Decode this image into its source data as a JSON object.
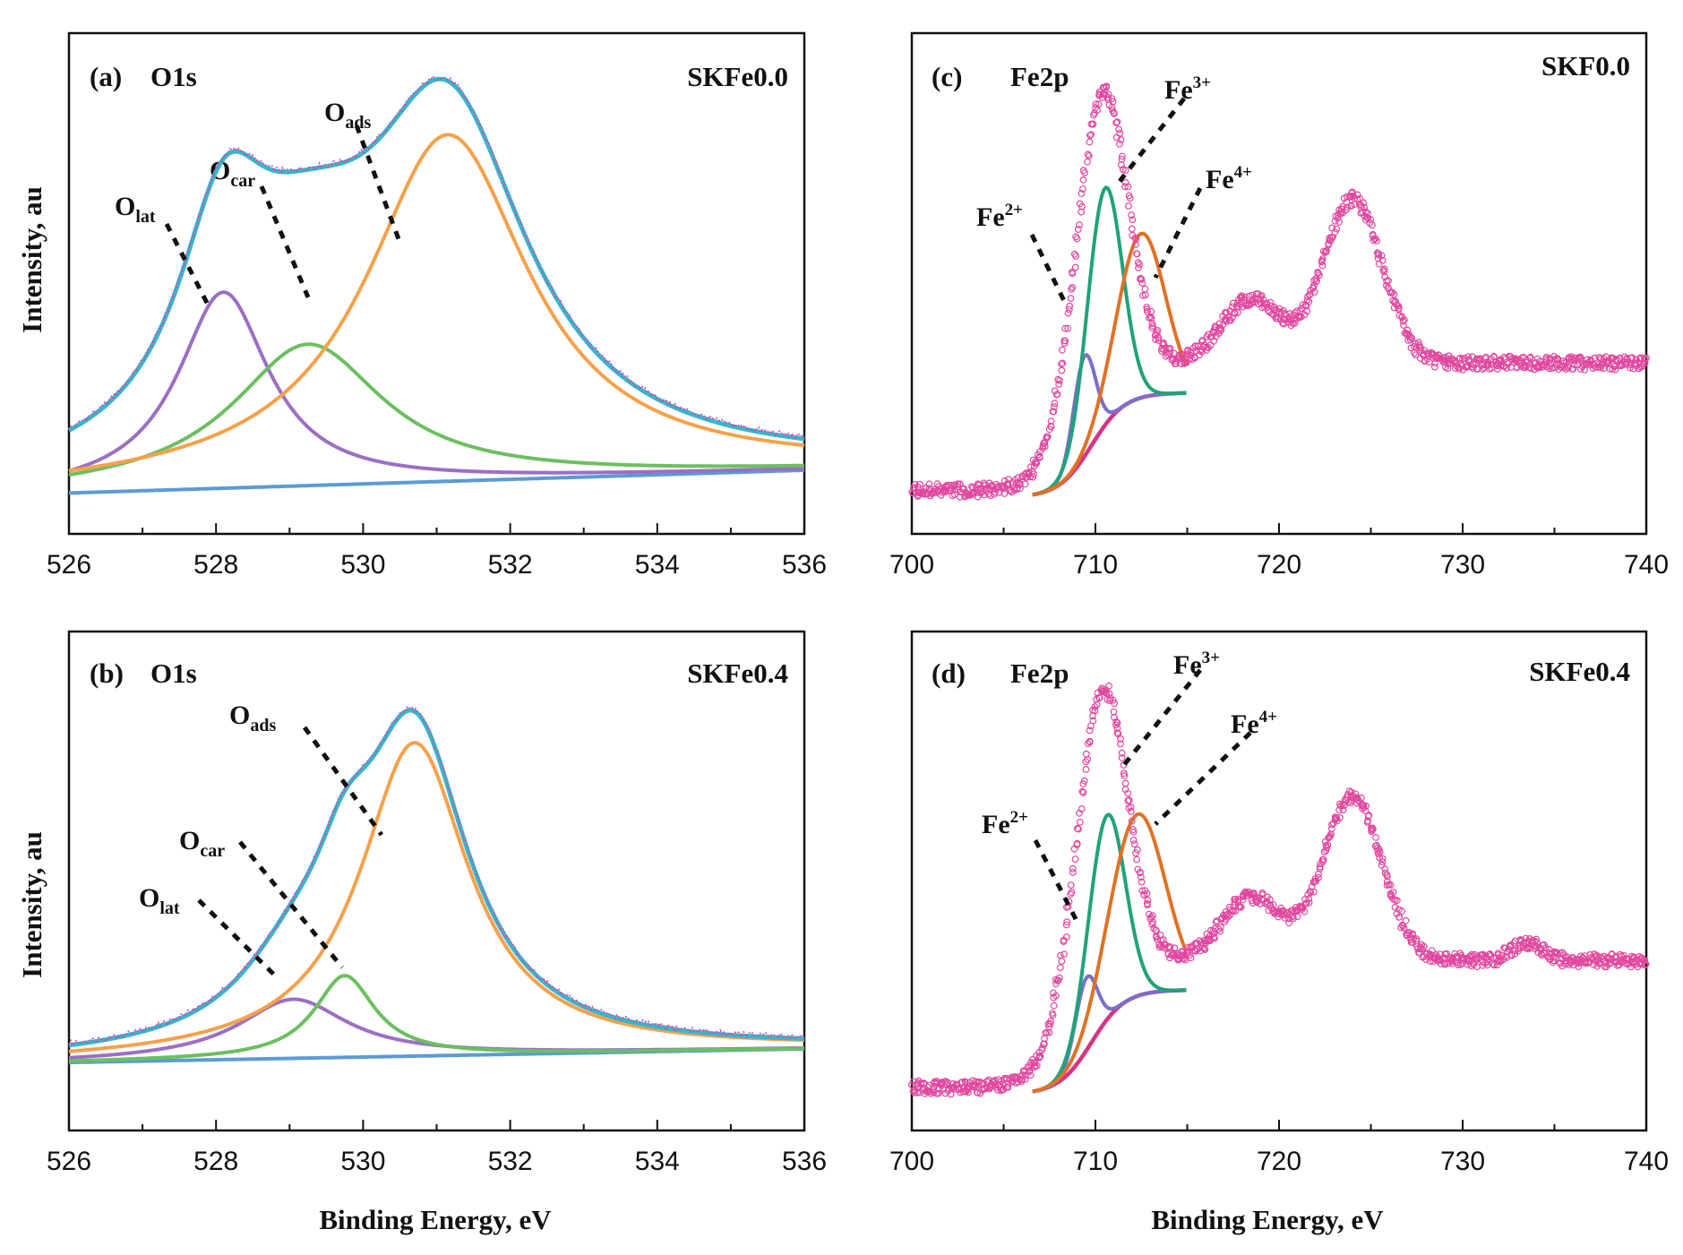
{
  "figure": {
    "ylabel": "Intensity, au",
    "xlabel": "Binding Energy, eV"
  },
  "chart_data": [
    {
      "id": "a",
      "type": "line",
      "panel_label": "(a)",
      "title": "O1s",
      "sample": "SKFe0.0",
      "xlabel": "",
      "ylabel": "Intensity, au",
      "xlim": [
        526,
        536
      ],
      "ylim": [
        0,
        1
      ],
      "xticks": [
        "526",
        "528",
        "530",
        "532",
        "534",
        "536"
      ],
      "background": {
        "x": [
          526,
          536
        ],
        "y": [
          0.07,
          0.12
        ],
        "color": "#5b9bd5"
      },
      "components": [
        {
          "name": "O_lat",
          "center": 528.1,
          "height": 0.43,
          "width": 0.75,
          "color": "#9b6fc4"
        },
        {
          "name": "O_car",
          "center": 529.25,
          "height": 0.31,
          "width": 1.25,
          "color": "#6cbf60"
        },
        {
          "name": "O_ads",
          "center": 531.15,
          "height": 0.76,
          "width": 1.35,
          "color": "#f5a14a"
        }
      ],
      "annotations": [
        {
          "base": "O",
          "sub": "lat"
        },
        {
          "base": "O",
          "sub": "car"
        },
        {
          "base": "O",
          "sub": "ads"
        }
      ],
      "envelope_color": "#36b6cf",
      "raw_color": "#e0479e"
    },
    {
      "id": "b",
      "type": "line",
      "panel_label": "(b)",
      "title": "O1s",
      "sample": "SKFe0.4",
      "xlabel": "Binding Energy, eV",
      "ylabel": "Intensity, au",
      "xlim": [
        526,
        536
      ],
      "ylim": [
        0,
        1
      ],
      "xticks": [
        "526",
        "528",
        "530",
        "532",
        "534",
        "536"
      ],
      "background": {
        "x": [
          526,
          536
        ],
        "y": [
          0.13,
          0.16
        ],
        "color": "#5b9bd5"
      },
      "components": [
        {
          "name": "O_lat",
          "center": 529.05,
          "height": 0.13,
          "width": 0.9,
          "color": "#9b6fc4"
        },
        {
          "name": "O_car",
          "center": 529.75,
          "height": 0.18,
          "width": 0.5,
          "color": "#6cbf60"
        },
        {
          "name": "O_ads",
          "center": 530.7,
          "height": 0.69,
          "width": 0.9,
          "color": "#f5a14a"
        }
      ],
      "annotations": [
        {
          "base": "O",
          "sub": "lat"
        },
        {
          "base": "O",
          "sub": "car"
        },
        {
          "base": "O",
          "sub": "ads"
        }
      ],
      "envelope_color": "#36b6cf",
      "raw_color": "#e0479e"
    },
    {
      "id": "c",
      "type": "line",
      "panel_label": "(c)",
      "title": "Fe2p",
      "sample": "SKF0.0",
      "xlabel": "",
      "ylabel": "",
      "xlim": [
        700,
        740
      ],
      "ylim": [
        0,
        1
      ],
      "xticks": [
        "700",
        "710",
        "720",
        "730",
        "740"
      ],
      "background_color": "#d63384",
      "components": [
        {
          "name": "Fe2+",
          "center": 709.4,
          "height": 0.22,
          "width": 0.6,
          "color": "#7b6fc9"
        },
        {
          "name": "Fe3+",
          "center": 710.5,
          "height": 0.52,
          "width": 0.95,
          "color": "#1fa37a"
        },
        {
          "name": "Fe4+",
          "center": 712.5,
          "height": 0.36,
          "width": 1.3,
          "color": "#e07224"
        }
      ],
      "annotations": [
        {
          "base": "Fe",
          "sup": "2+"
        },
        {
          "base": "Fe",
          "sup": "3+"
        },
        {
          "base": "Fe",
          "sup": "4+"
        }
      ],
      "raw_color": "#e0479e"
    },
    {
      "id": "d",
      "type": "line",
      "panel_label": "(d)",
      "title": "Fe2p",
      "sample": "SKFe0.4",
      "xlabel": "Binding Energy, eV",
      "ylabel": "",
      "xlim": [
        700,
        740
      ],
      "ylim": [
        0,
        1
      ],
      "xticks": [
        "700",
        "710",
        "720",
        "730",
        "740"
      ],
      "background_color": "#d63384",
      "components": [
        {
          "name": "Fe2+",
          "center": 709.5,
          "height": 0.16,
          "width": 0.6,
          "color": "#7b6fc9"
        },
        {
          "name": "Fe3+",
          "center": 710.6,
          "height": 0.45,
          "width": 1.0,
          "color": "#1fa37a"
        },
        {
          "name": "Fe4+",
          "center": 712.3,
          "height": 0.4,
          "width": 1.5,
          "color": "#e07224"
        }
      ],
      "annotations": [
        {
          "base": "Fe",
          "sup": "2+"
        },
        {
          "base": "Fe",
          "sup": "3+"
        },
        {
          "base": "Fe",
          "sup": "4+"
        }
      ],
      "raw_color": "#e0479e"
    }
  ]
}
